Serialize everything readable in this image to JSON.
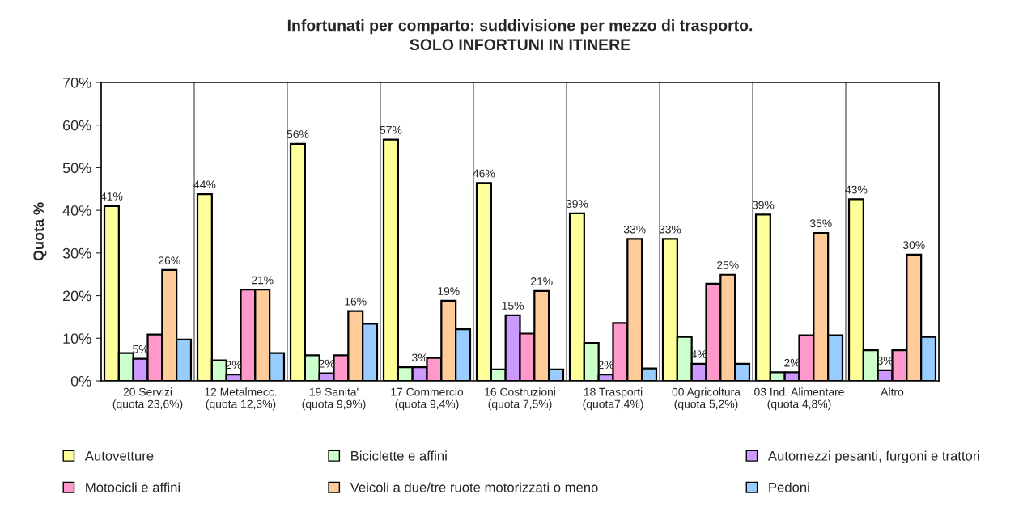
{
  "chart_data": {
    "type": "bar",
    "title": "Infortunati per comparto: suddivisione per mezzo di trasporto.\nSOLO INFORTUNI IN ITINERE",
    "ylabel": "Quota %",
    "categories": [
      "20 Servizi\n(quota 23,6%)",
      "12 Metalmecc.\n(quota 12,3%)",
      "19 Sanita'\n(quota 9,9%)",
      "17 Commercio\n(quota 9,4%)",
      "16 Costruzioni\n(quota 7,5%)",
      "18 Trasporti\n(quota7,4%)",
      "00 Agricoltura\n(quota 5,2%)",
      "03 Ind. Alimentare\n(quota 4,8%)",
      "Altro"
    ],
    "series": [
      {
        "name": "Autovetture",
        "color": "#ffff99",
        "values": [
          41.0,
          43.8,
          55.6,
          56.6,
          46.4,
          39.3,
          33.3,
          39.0,
          42.6
        ],
        "value_labels": [
          "41%",
          "44%",
          "56%",
          "57%",
          "46%",
          "39%",
          "33%",
          "39%",
          "43%"
        ]
      },
      {
        "name": "Biciclette e affini",
        "color": "#ccffcc",
        "values": [
          6.5,
          4.8,
          6.0,
          3.2,
          2.7,
          8.9,
          10.3,
          2.0,
          7.2
        ]
      },
      {
        "name": "Automezzi pesanti, furgoni e trattori",
        "color": "#cc99ff",
        "values": [
          5.2,
          1.5,
          1.8,
          3.2,
          15.4,
          1.5,
          4.0,
          2.0,
          2.5
        ],
        "value_labels": [
          "5%",
          "2%",
          "2%",
          "3%",
          "15%",
          "2%",
          "4%",
          "2%",
          "3%"
        ]
      },
      {
        "name": "Motocicli e affini",
        "color": "#ff99cc",
        "values": [
          10.9,
          21.4,
          6.0,
          5.4,
          11.1,
          13.6,
          22.8,
          10.7,
          7.2
        ]
      },
      {
        "name": "Veicoli a due/tre ruote motorizzati o meno",
        "color": "#ffcc99",
        "values": [
          26.0,
          21.4,
          16.4,
          18.8,
          21.1,
          33.3,
          24.9,
          34.7,
          29.6
        ],
        "value_labels": [
          "26%",
          "21%",
          "16%",
          "19%",
          "21%",
          "33%",
          "25%",
          "35%",
          "30%"
        ]
      },
      {
        "name": "Pedoni",
        "color": "#99ccff",
        "values": [
          9.7,
          6.5,
          13.4,
          12.1,
          2.7,
          2.9,
          4.0,
          10.7,
          10.3
        ]
      }
    ],
    "ylim": [
      0,
      70
    ],
    "yticks": [
      {
        "value": 0,
        "label": "0%"
      },
      {
        "value": 10,
        "label": "10%"
      },
      {
        "value": 20,
        "label": "20%"
      },
      {
        "value": 30,
        "label": "30%"
      },
      {
        "value": 40,
        "label": "40%"
      },
      {
        "value": 50,
        "label": "50%"
      },
      {
        "value": 60,
        "label": "60%"
      },
      {
        "value": 70,
        "label": "70%"
      }
    ],
    "grid": "x",
    "legend": "bottom"
  }
}
